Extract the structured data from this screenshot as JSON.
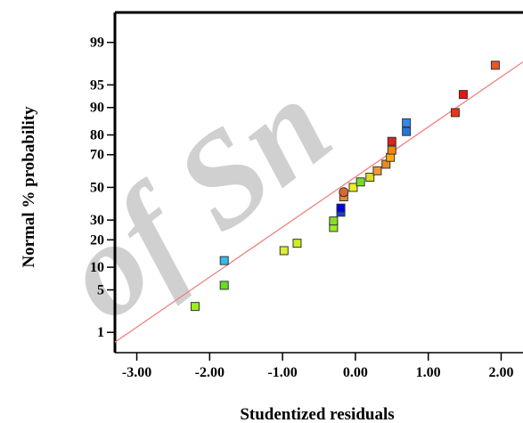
{
  "chart_data": {
    "type": "scatter",
    "title": "",
    "xlabel": "Studentized residuals",
    "ylabel": "Normal % probability",
    "xlim": [
      -3.3,
      2.3
    ],
    "x_ticks": [
      "-3.00",
      "-2.00",
      "-1.00",
      "0.00",
      "1.00",
      "2.00"
    ],
    "x_tick_values": [
      -3,
      -2,
      -1,
      0,
      1,
      2
    ],
    "y_scale": "normal-probability",
    "y_ticks": [
      "99",
      "95",
      "90",
      "80",
      "70",
      "50",
      "30",
      "20",
      "10",
      "5",
      "1"
    ],
    "y_tick_values": [
      99,
      95,
      90,
      80,
      70,
      50,
      30,
      20,
      10,
      5,
      1
    ],
    "ylim": [
      0.4,
      99.75
    ],
    "reference_line": {
      "color": "#f08080",
      "from": [
        -3.3,
        0.65
      ],
      "to": [
        2.3,
        97.8
      ]
    },
    "points": [
      {
        "x": -2.2,
        "y": 2.8,
        "shape": "square",
        "color": "#99ee22"
      },
      {
        "x": -1.8,
        "y": 5.8,
        "shape": "square",
        "color": "#66dd22"
      },
      {
        "x": -1.8,
        "y": 12.0,
        "shape": "square",
        "color": "#33bbee"
      },
      {
        "x": -0.98,
        "y": 15.5,
        "shape": "square",
        "color": "#ddee33"
      },
      {
        "x": -0.8,
        "y": 18.5,
        "shape": "square",
        "color": "#ccee22"
      },
      {
        "x": -0.3,
        "y": 26.0,
        "shape": "square",
        "color": "#99ee22"
      },
      {
        "x": -0.3,
        "y": 29.5,
        "shape": "square",
        "color": "#88dd22"
      },
      {
        "x": -0.2,
        "y": 34.5,
        "shape": "square",
        "color": "#1144cc"
      },
      {
        "x": -0.2,
        "y": 37.0,
        "shape": "square",
        "color": "#0000dd"
      },
      {
        "x": -0.16,
        "y": 44.0,
        "shape": "square",
        "color": "#ee8833"
      },
      {
        "x": -0.16,
        "y": 47.0,
        "shape": "circle",
        "color": "#dd6633"
      },
      {
        "x": -0.03,
        "y": 50.0,
        "shape": "square",
        "color": "#eeee22"
      },
      {
        "x": 0.07,
        "y": 53.5,
        "shape": "square",
        "color": "#77dd22"
      },
      {
        "x": 0.2,
        "y": 56.5,
        "shape": "square",
        "color": "#dddd22"
      },
      {
        "x": 0.3,
        "y": 60.5,
        "shape": "square",
        "color": "#ee9933"
      },
      {
        "x": 0.42,
        "y": 64.5,
        "shape": "square",
        "color": "#ee8822"
      },
      {
        "x": 0.48,
        "y": 68.5,
        "shape": "square",
        "color": "#ffaa11"
      },
      {
        "x": 0.5,
        "y": 72.5,
        "shape": "square",
        "color": "#ee8811"
      },
      {
        "x": 0.5,
        "y": 77.0,
        "shape": "square",
        "color": "#dd2222"
      },
      {
        "x": 0.7,
        "y": 81.5,
        "shape": "square",
        "color": "#2277dd"
      },
      {
        "x": 0.7,
        "y": 85.0,
        "shape": "square",
        "color": "#3388ee"
      },
      {
        "x": 1.37,
        "y": 88.5,
        "shape": "square",
        "color": "#ee3311"
      },
      {
        "x": 1.48,
        "y": 93.2,
        "shape": "square",
        "color": "#ee1111"
      },
      {
        "x": 1.92,
        "y": 97.5,
        "shape": "square",
        "color": "#ee5522"
      }
    ],
    "grid": false,
    "legend": "none",
    "watermark": "of Sn"
  }
}
